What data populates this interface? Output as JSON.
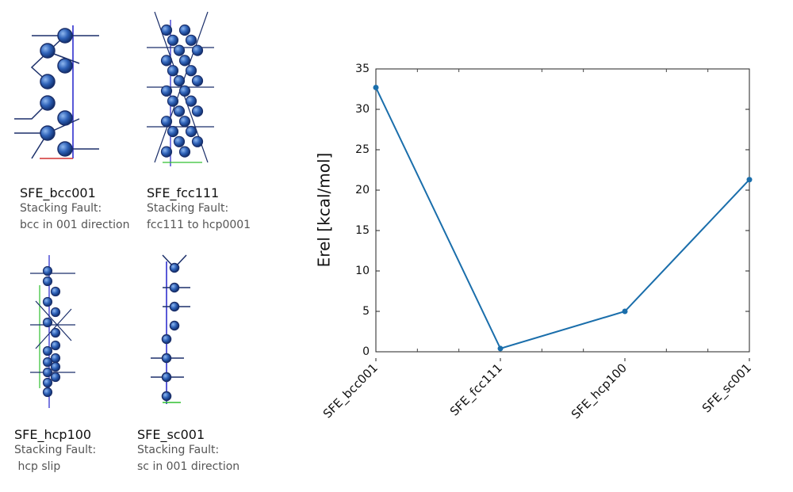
{
  "structures": [
    {
      "name": "SFE_bcc001",
      "description": [
        "Stacking Fault:",
        "bcc in 001 direction"
      ]
    },
    {
      "name": "SFE_fcc111",
      "description": [
        "Stacking Fault:",
        "fcc111 to hcp0001"
      ]
    },
    {
      "name": "SFE_hcp100",
      "description": [
        "Stacking Fault:",
        " hcp slip"
      ]
    },
    {
      "name": "SFE_sc001",
      "description": [
        "Stacking Fault:",
        "sc in 001 direction"
      ]
    }
  ],
  "chart_data": {
    "type": "line",
    "y_label": "Erel [kcal/mol]",
    "categories": [
      "SFE_bcc001",
      "SFE_fcc111",
      "SFE_hcp100",
      "SFE_sc001"
    ],
    "values": [
      32.7,
      0.4,
      5.0,
      21.3
    ],
    "color": "#1a6eab",
    "ylim": [
      0,
      35
    ],
    "yticks": [
      0,
      5,
      10,
      15,
      20,
      25,
      30,
      35
    ]
  }
}
